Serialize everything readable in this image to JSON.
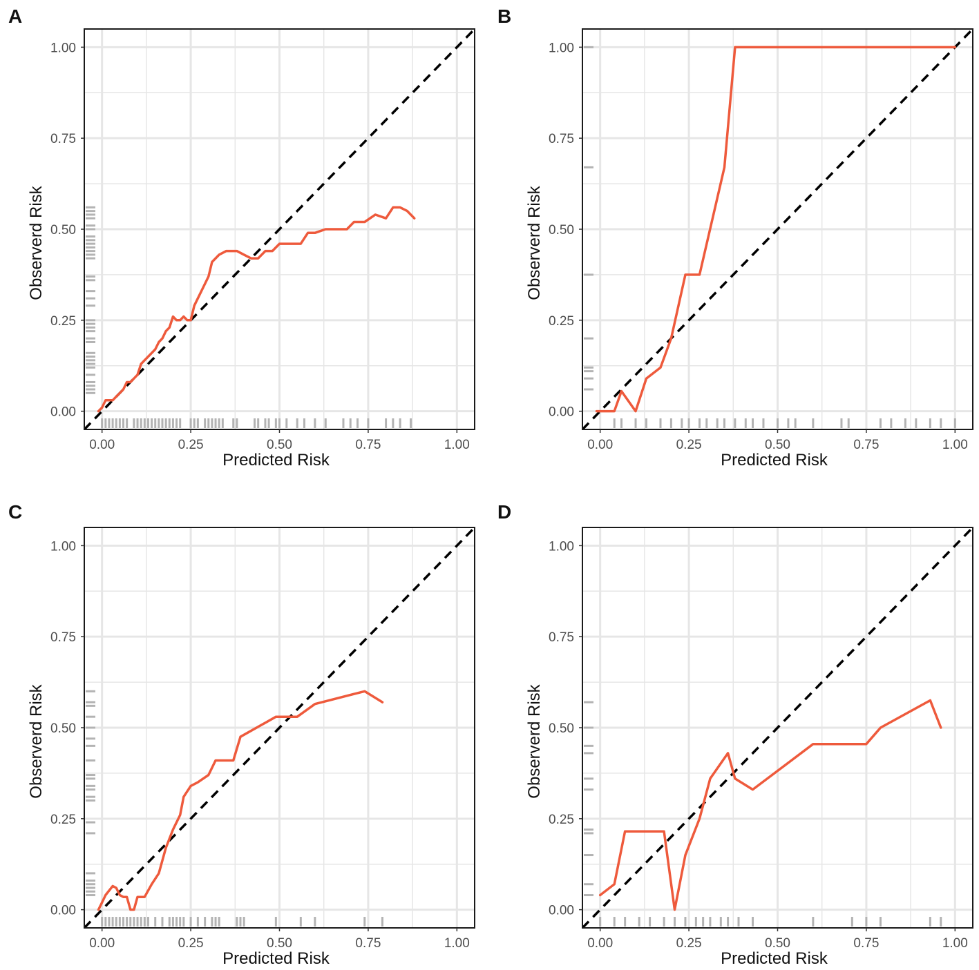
{
  "figure": {
    "x_ticks": [
      "0.00",
      "0.25",
      "0.50",
      "0.75",
      "1.00"
    ],
    "y_ticks": [
      "0.00",
      "0.25",
      "0.50",
      "0.75",
      "1.00"
    ],
    "colors": {
      "calibration_line": "#ee5a3c",
      "reference_line": "#000000",
      "grid": "#e6e6e6",
      "rug": "#b3b3b3",
      "frame": "#1a1a1a"
    }
  },
  "chart_data": [
    {
      "panel": "A",
      "type": "line",
      "xlabel": "Predicted Risk",
      "ylabel": "Observerd Risk",
      "xlim": [
        -0.05,
        1.05
      ],
      "ylim": [
        -0.05,
        1.05
      ],
      "grid": true,
      "reference": "diagonal y = x (dashed)",
      "series": [
        {
          "name": "calibration",
          "x": [
            -0.01,
            0.0,
            0.01,
            0.03,
            0.04,
            0.05,
            0.06,
            0.07,
            0.08,
            0.09,
            0.1,
            0.11,
            0.12,
            0.13,
            0.15,
            0.16,
            0.17,
            0.18,
            0.19,
            0.2,
            0.21,
            0.22,
            0.23,
            0.24,
            0.25,
            0.26,
            0.28,
            0.3,
            0.31,
            0.33,
            0.35,
            0.38,
            0.4,
            0.42,
            0.44,
            0.46,
            0.48,
            0.5,
            0.52,
            0.54,
            0.56,
            0.58,
            0.6,
            0.63,
            0.66,
            0.69,
            0.71,
            0.74,
            0.77,
            0.8,
            0.82,
            0.84,
            0.86,
            0.88
          ],
          "y": [
            0.0,
            0.01,
            0.03,
            0.03,
            0.04,
            0.05,
            0.06,
            0.08,
            0.08,
            0.09,
            0.1,
            0.13,
            0.14,
            0.15,
            0.17,
            0.19,
            0.2,
            0.22,
            0.23,
            0.26,
            0.25,
            0.25,
            0.26,
            0.25,
            0.25,
            0.29,
            0.33,
            0.37,
            0.41,
            0.43,
            0.44,
            0.44,
            0.43,
            0.42,
            0.42,
            0.44,
            0.44,
            0.46,
            0.46,
            0.46,
            0.46,
            0.49,
            0.49,
            0.5,
            0.5,
            0.5,
            0.52,
            0.52,
            0.54,
            0.53,
            0.56,
            0.56,
            0.55,
            0.53
          ]
        }
      ],
      "rug_x": [
        0.0,
        0.01,
        0.02,
        0.03,
        0.04,
        0.05,
        0.06,
        0.07,
        0.09,
        0.1,
        0.11,
        0.12,
        0.13,
        0.14,
        0.15,
        0.16,
        0.17,
        0.18,
        0.19,
        0.2,
        0.21,
        0.22,
        0.25,
        0.26,
        0.27,
        0.29,
        0.3,
        0.31,
        0.32,
        0.33,
        0.34,
        0.37,
        0.38,
        0.43,
        0.44,
        0.46,
        0.47,
        0.49,
        0.5,
        0.52,
        0.55,
        0.57,
        0.6,
        0.63,
        0.68,
        0.7,
        0.72,
        0.75,
        0.8,
        0.82,
        0.84,
        0.87
      ],
      "rug_y": [
        0.05,
        0.06,
        0.07,
        0.08,
        0.1,
        0.12,
        0.13,
        0.14,
        0.15,
        0.16,
        0.19,
        0.2,
        0.22,
        0.23,
        0.24,
        0.25,
        0.29,
        0.31,
        0.33,
        0.36,
        0.37,
        0.42,
        0.43,
        0.44,
        0.45,
        0.46,
        0.47,
        0.48,
        0.5,
        0.51,
        0.53,
        0.54,
        0.55,
        0.56
      ]
    },
    {
      "panel": "B",
      "type": "line",
      "xlabel": "Predicted Risk",
      "ylabel": "Observerd Risk",
      "xlim": [
        -0.05,
        1.05
      ],
      "ylim": [
        -0.05,
        1.05
      ],
      "grid": true,
      "reference": "diagonal y = x (dashed)",
      "series": [
        {
          "name": "calibration",
          "x": [
            -0.01,
            0.04,
            0.06,
            0.1,
            0.13,
            0.17,
            0.2,
            0.24,
            0.28,
            0.35,
            0.38,
            1.0
          ],
          "y": [
            0.0,
            0.0,
            0.055,
            0.0,
            0.09,
            0.12,
            0.2,
            0.375,
            0.375,
            0.67,
            1.0,
            1.0
          ]
        }
      ],
      "rug_x": [
        0.04,
        0.06,
        0.1,
        0.13,
        0.17,
        0.2,
        0.23,
        0.25,
        0.28,
        0.3,
        0.33,
        0.35,
        0.38,
        0.41,
        0.43,
        0.46,
        0.5,
        0.53,
        0.55,
        0.6,
        0.68,
        0.7,
        0.79,
        0.82,
        0.86,
        0.89,
        0.93,
        0.96,
        1.0
      ],
      "rug_y": [
        0.06,
        0.09,
        0.11,
        0.12,
        0.2,
        0.375,
        0.67,
        1.0
      ]
    },
    {
      "panel": "C",
      "type": "line",
      "xlabel": "Predicted Risk",
      "ylabel": "Observerd Risk",
      "xlim": [
        -0.05,
        1.05
      ],
      "ylim": [
        -0.05,
        1.05
      ],
      "grid": true,
      "reference": "diagonal y = x (dashed)",
      "series": [
        {
          "name": "calibration",
          "x": [
            -0.01,
            0.0,
            0.01,
            0.03,
            0.04,
            0.05,
            0.06,
            0.07,
            0.08,
            0.09,
            0.1,
            0.12,
            0.14,
            0.16,
            0.18,
            0.2,
            0.22,
            0.23,
            0.25,
            0.27,
            0.3,
            0.32,
            0.37,
            0.39,
            0.49,
            0.55,
            0.6,
            0.74,
            0.79
          ],
          "y": [
            0.0,
            0.02,
            0.04,
            0.065,
            0.06,
            0.04,
            0.035,
            0.035,
            0.0,
            0.0,
            0.035,
            0.035,
            0.07,
            0.1,
            0.17,
            0.22,
            0.26,
            0.31,
            0.34,
            0.35,
            0.37,
            0.41,
            0.41,
            0.475,
            0.53,
            0.53,
            0.565,
            0.6,
            0.57
          ]
        }
      ],
      "rug_x": [
        0.0,
        0.01,
        0.02,
        0.03,
        0.04,
        0.05,
        0.06,
        0.07,
        0.08,
        0.09,
        0.1,
        0.11,
        0.12,
        0.13,
        0.15,
        0.17,
        0.19,
        0.2,
        0.21,
        0.22,
        0.23,
        0.25,
        0.27,
        0.29,
        0.31,
        0.32,
        0.33,
        0.38,
        0.39,
        0.4,
        0.49,
        0.56,
        0.6,
        0.74,
        0.79
      ],
      "rug_y": [
        0.04,
        0.05,
        0.06,
        0.07,
        0.08,
        0.1,
        0.21,
        0.24,
        0.3,
        0.31,
        0.33,
        0.34,
        0.36,
        0.37,
        0.41,
        0.45,
        0.47,
        0.5,
        0.53,
        0.56,
        0.57,
        0.6
      ]
    },
    {
      "panel": "D",
      "type": "line",
      "xlabel": "Predicted Risk",
      "ylabel": "Observerd Risk",
      "xlim": [
        -0.05,
        1.05
      ],
      "ylim": [
        -0.05,
        1.05
      ],
      "grid": true,
      "reference": "diagonal y = x (dashed)",
      "series": [
        {
          "name": "calibration",
          "x": [
            0.0,
            0.04,
            0.07,
            0.18,
            0.21,
            0.24,
            0.28,
            0.31,
            0.36,
            0.38,
            0.43,
            0.6,
            0.75,
            0.79,
            0.93,
            0.96
          ],
          "y": [
            0.04,
            0.07,
            0.215,
            0.215,
            0.0,
            0.15,
            0.25,
            0.36,
            0.43,
            0.36,
            0.33,
            0.455,
            0.455,
            0.5,
            0.575,
            0.5
          ]
        }
      ],
      "rug_x": [
        0.0,
        0.04,
        0.07,
        0.11,
        0.14,
        0.18,
        0.21,
        0.24,
        0.27,
        0.29,
        0.31,
        0.34,
        0.36,
        0.39,
        0.43,
        0.6,
        0.71,
        0.75,
        0.79,
        0.93,
        0.96
      ],
      "rug_y": [
        0.04,
        0.07,
        0.15,
        0.21,
        0.22,
        0.33,
        0.36,
        0.43,
        0.45,
        0.5,
        0.57
      ]
    }
  ]
}
